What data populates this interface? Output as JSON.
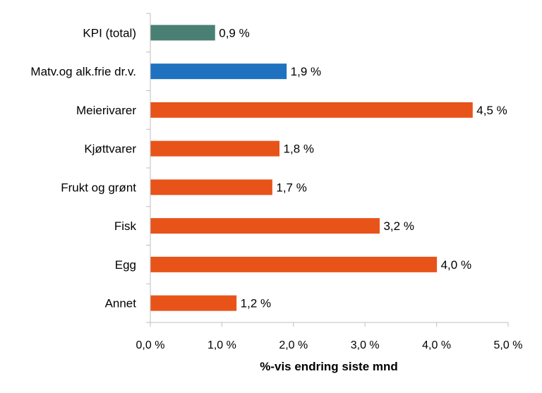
{
  "chart_data": {
    "type": "bar",
    "orientation": "horizontal",
    "title": "",
    "xlabel": "%-vis endring siste mnd",
    "ylabel": "",
    "xlim": [
      0,
      5
    ],
    "x_ticks": [
      0,
      1,
      2,
      3,
      4,
      5
    ],
    "x_tick_labels": [
      "0,0 %",
      "1,0 %",
      "2,0 %",
      "3,0 %",
      "4,0 %",
      "5,0 %"
    ],
    "grid": false,
    "legend": "none",
    "categories": [
      "KPI (total)",
      "Matv.og alk.frie dr.v.",
      "Meierivarer",
      "Kjøttvarer",
      "Frukt og grønt",
      "Fisk",
      "Egg",
      "Annet"
    ],
    "values": [
      0.9,
      1.9,
      4.5,
      1.8,
      1.7,
      3.2,
      4.0,
      1.2
    ],
    "data_labels": [
      "0,9 %",
      "1,9 %",
      "4,5 %",
      "1,8 %",
      "1,7 %",
      "3,2 %",
      "4,0 %",
      "1,2 %"
    ],
    "colors": [
      "#4a7f73",
      "#1f72bf",
      "#e8531a",
      "#e8531a",
      "#e8531a",
      "#e8531a",
      "#e8531a",
      "#e8531a"
    ],
    "axis_color": "#bfbfbf"
  }
}
